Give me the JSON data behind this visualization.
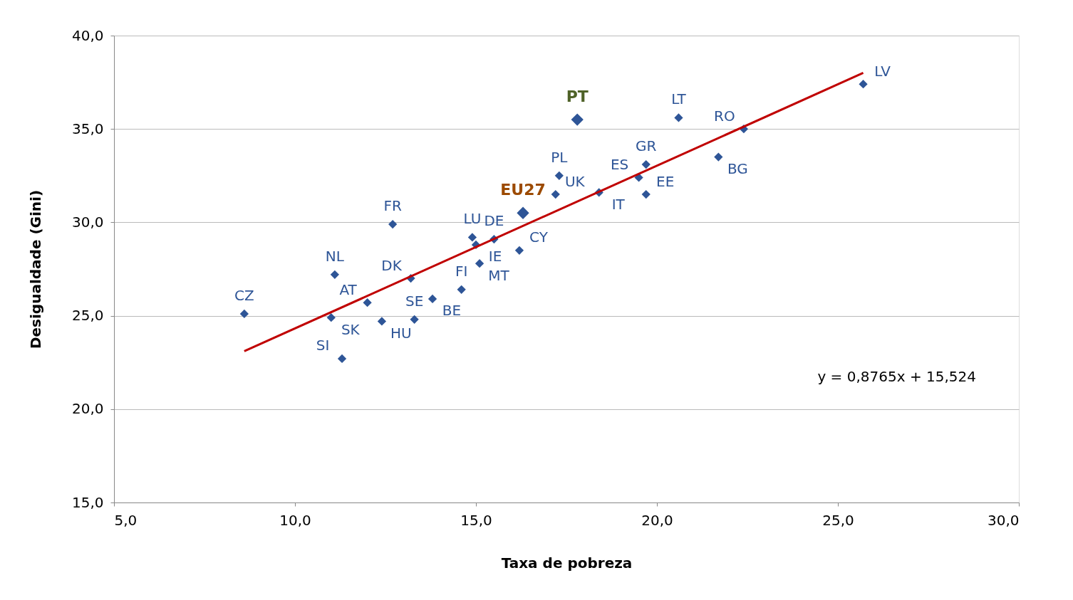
{
  "chart_data": {
    "type": "scatter",
    "xlabel": "Taxa de pobreza",
    "ylabel": "Desigualdade  (Gini)",
    "xlim": [
      5,
      30
    ],
    "ylim": [
      15,
      40
    ],
    "xticks": [
      {
        "value": 5,
        "label": "5,0"
      },
      {
        "value": 10,
        "label": "10,0"
      },
      {
        "value": 15,
        "label": "15,0"
      },
      {
        "value": 20,
        "label": "20,0"
      },
      {
        "value": 25,
        "label": "25,0"
      },
      {
        "value": 30,
        "label": "30,0"
      }
    ],
    "yticks": [
      {
        "value": 15,
        "label": "15,0"
      },
      {
        "value": 20,
        "label": "20,0"
      },
      {
        "value": 25,
        "label": "25,0"
      },
      {
        "value": 30,
        "label": "30,0"
      },
      {
        "value": 35,
        "label": "35,0"
      },
      {
        "value": 40,
        "label": "40,0"
      }
    ],
    "grid": "y",
    "marker": "diamond",
    "series": [
      {
        "color": "#2e5597",
        "x": [
          8.6,
          11.1,
          11.0,
          11.3,
          12.0,
          12.4,
          13.2,
          13.3,
          12.7,
          13.8,
          14.6,
          14.9,
          15.0,
          15.1,
          15.5,
          16.2,
          17.2,
          17.3,
          18.4,
          19.5,
          19.7,
          19.7,
          20.6,
          21.7,
          22.4,
          25.7
        ],
        "values": [
          25.1,
          27.2,
          24.9,
          22.7,
          25.7,
          24.7,
          27.0,
          24.8,
          29.9,
          25.9,
          26.4,
          29.2,
          28.8,
          27.8,
          29.1,
          28.5,
          31.5,
          32.5,
          31.6,
          32.4,
          31.5,
          33.1,
          35.6,
          33.5,
          35.0,
          37.4
        ]
      },
      {
        "name": "PT",
        "color": "#2e5597",
        "x": [
          17.8
        ],
        "values": [
          35.5
        ]
      },
      {
        "name": "EU27",
        "color": "#2e5597",
        "x": [
          16.3
        ],
        "values": [
          30.5
        ]
      },
      {
        "type": "line",
        "marker": "none",
        "color": "#c00000",
        "x": [
          8.6,
          25.7
        ],
        "values": [
          23.1,
          38.0
        ]
      }
    ],
    "annotations": [
      {
        "text": "CZ",
        "x": 8.6,
        "y": 25.1
      },
      {
        "text": "NL",
        "x": 11.1,
        "y": 27.2
      },
      {
        "text": "SK",
        "x": 11.0,
        "y": 24.9
      },
      {
        "text": "SI",
        "x": 11.3,
        "y": 22.7
      },
      {
        "text": "AT",
        "x": 12.0,
        "y": 25.7
      },
      {
        "text": "HU",
        "x": 12.4,
        "y": 24.7
      },
      {
        "text": "DK",
        "x": 13.2,
        "y": 27.0
      },
      {
        "text": "SE",
        "x": 13.3,
        "y": 24.8
      },
      {
        "text": "FR",
        "x": 12.7,
        "y": 29.9
      },
      {
        "text": "BE",
        "x": 13.8,
        "y": 25.9
      },
      {
        "text": "FI",
        "x": 14.6,
        "y": 26.4
      },
      {
        "text": "LU",
        "x": 14.9,
        "y": 29.2
      },
      {
        "text": "IE",
        "x": 15.0,
        "y": 28.8
      },
      {
        "text": "MT",
        "x": 15.1,
        "y": 27.8
      },
      {
        "text": "DE",
        "x": 15.5,
        "y": 29.1
      },
      {
        "text": "CY",
        "x": 16.2,
        "y": 28.5
      },
      {
        "text": "UK",
        "x": 17.2,
        "y": 31.5
      },
      {
        "text": "PL",
        "x": 17.3,
        "y": 32.5
      },
      {
        "text": "IT",
        "x": 18.4,
        "y": 31.6
      },
      {
        "text": "ES",
        "x": 19.5,
        "y": 32.4
      },
      {
        "text": "EE",
        "x": 19.7,
        "y": 31.5
      },
      {
        "text": "GR",
        "x": 19.7,
        "y": 33.1
      },
      {
        "text": "LT",
        "x": 20.6,
        "y": 35.6
      },
      {
        "text": "BG",
        "x": 21.7,
        "y": 33.5
      },
      {
        "text": "RO",
        "x": 22.4,
        "y": 35.0
      },
      {
        "text": "LV",
        "x": 25.7,
        "y": 37.4
      },
      "y = 0,8765x + 15,524"
    ]
  }
}
